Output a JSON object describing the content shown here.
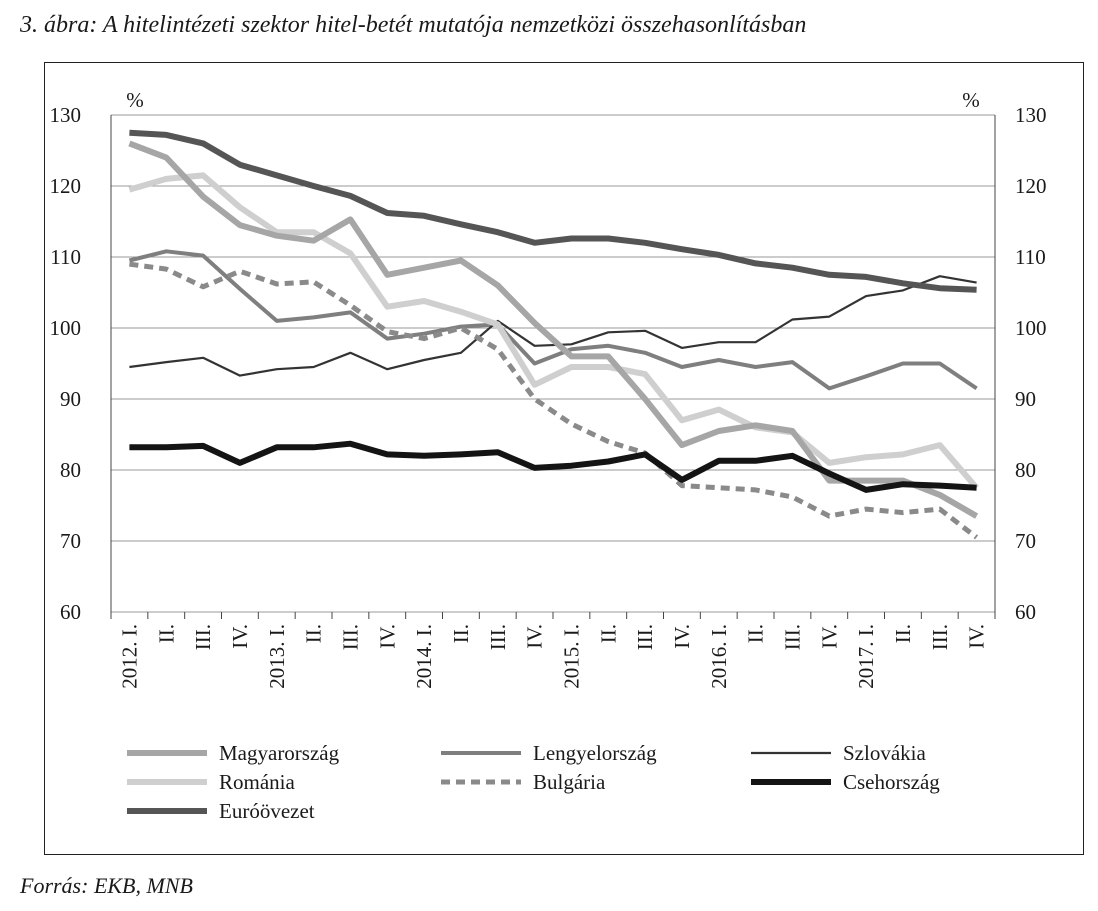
{
  "figure_title": "3. ábra: A hitelintézeti szektor hitel-betét mutatója nemzetközi összehasonlításban",
  "source": "Forrás: EKB, MNB",
  "chart_data": {
    "type": "line",
    "title": "3. ábra: A hitelintézeti szektor hitel-betét mutatója nemzetközi összehasonlításban",
    "ylabel_left": "%",
    "ylabel_right": "%",
    "ylim": [
      60,
      130
    ],
    "yticks": [
      60,
      70,
      80,
      90,
      100,
      110,
      120,
      130
    ],
    "grid": true,
    "legend_position": "bottom",
    "categories": [
      "2012. I.",
      "II.",
      "III.",
      "IV.",
      "2013. I.",
      "II.",
      "III.",
      "IV.",
      "2014. I.",
      "II.",
      "III.",
      "IV.",
      "2015. I.",
      "II.",
      "III.",
      "IV.",
      "2016. I.",
      "II.",
      "III.",
      "IV.",
      "2017. I.",
      "II.",
      "III.",
      "IV."
    ],
    "series": [
      {
        "name": "Magyarország",
        "color": "#a6a6a6",
        "style": "solid-thick",
        "values": [
          126,
          124,
          118.5,
          114.5,
          113,
          112.3,
          115.3,
          107.5,
          108.5,
          109.5,
          106,
          100.7,
          96,
          96,
          90,
          83.5,
          85.5,
          86.3,
          85.5,
          78.5,
          78.5,
          78.5,
          76.5,
          73.5
        ]
      },
      {
        "name": "Lengyelország",
        "color": "#7f7f7f",
        "style": "solid-medium",
        "values": [
          109.5,
          110.8,
          110.2,
          105.5,
          101,
          101.5,
          102.2,
          98.5,
          99.2,
          100.2,
          100.5,
          95,
          97,
          97.5,
          96.5,
          94.5,
          95.5,
          94.5,
          95.2,
          91.5,
          93.2,
          95,
          95,
          91.5
        ]
      },
      {
        "name": "Szlovákia",
        "color": "#333333",
        "style": "solid-thin",
        "values": [
          94.5,
          95.2,
          95.8,
          93.3,
          94.2,
          94.5,
          96.5,
          94.2,
          95.5,
          96.5,
          101,
          97.5,
          97.7,
          99.4,
          99.6,
          97.2,
          98,
          98,
          101.2,
          101.6,
          104.5,
          105.3,
          107.3,
          106.4
        ]
      },
      {
        "name": "Románia",
        "color": "#cfcfcf",
        "style": "solid-thick",
        "values": [
          119.5,
          121,
          121.5,
          117,
          113.5,
          113.5,
          110.5,
          103,
          103.8,
          102.3,
          100.5,
          92,
          94.5,
          94.5,
          93.5,
          87,
          88.5,
          86,
          85.3,
          81,
          81.8,
          82.2,
          83.5,
          77.5
        ]
      },
      {
        "name": "Bulgária",
        "color": "#8a8a8a",
        "style": "dashed",
        "values": [
          109,
          108.3,
          105.8,
          108,
          106.2,
          106.5,
          103.2,
          99.5,
          98.5,
          100,
          97,
          90,
          86.5,
          84,
          82.4,
          77.8,
          77.5,
          77.2,
          76.2,
          73.5,
          74.5,
          74,
          74.5,
          70.5
        ]
      },
      {
        "name": "Csehország",
        "color": "#141414",
        "style": "solid-thick",
        "values": [
          83.2,
          83.2,
          83.4,
          81,
          83.2,
          83.2,
          83.7,
          82.2,
          82,
          82.2,
          82.5,
          80.3,
          80.6,
          81.2,
          82.2,
          78.6,
          81.3,
          81.3,
          82,
          79.5,
          77.2,
          78,
          77.8,
          77.5
        ]
      },
      {
        "name": "Euróövezet",
        "color": "#555555",
        "style": "solid-thick",
        "values": [
          127.5,
          127.2,
          126,
          123,
          121.5,
          120,
          118.6,
          116.2,
          115.8,
          114.6,
          113.5,
          112,
          112.6,
          112.6,
          112,
          111.1,
          110.3,
          109.1,
          108.5,
          107.5,
          107.2,
          106.3,
          105.6,
          105.4
        ]
      }
    ]
  }
}
